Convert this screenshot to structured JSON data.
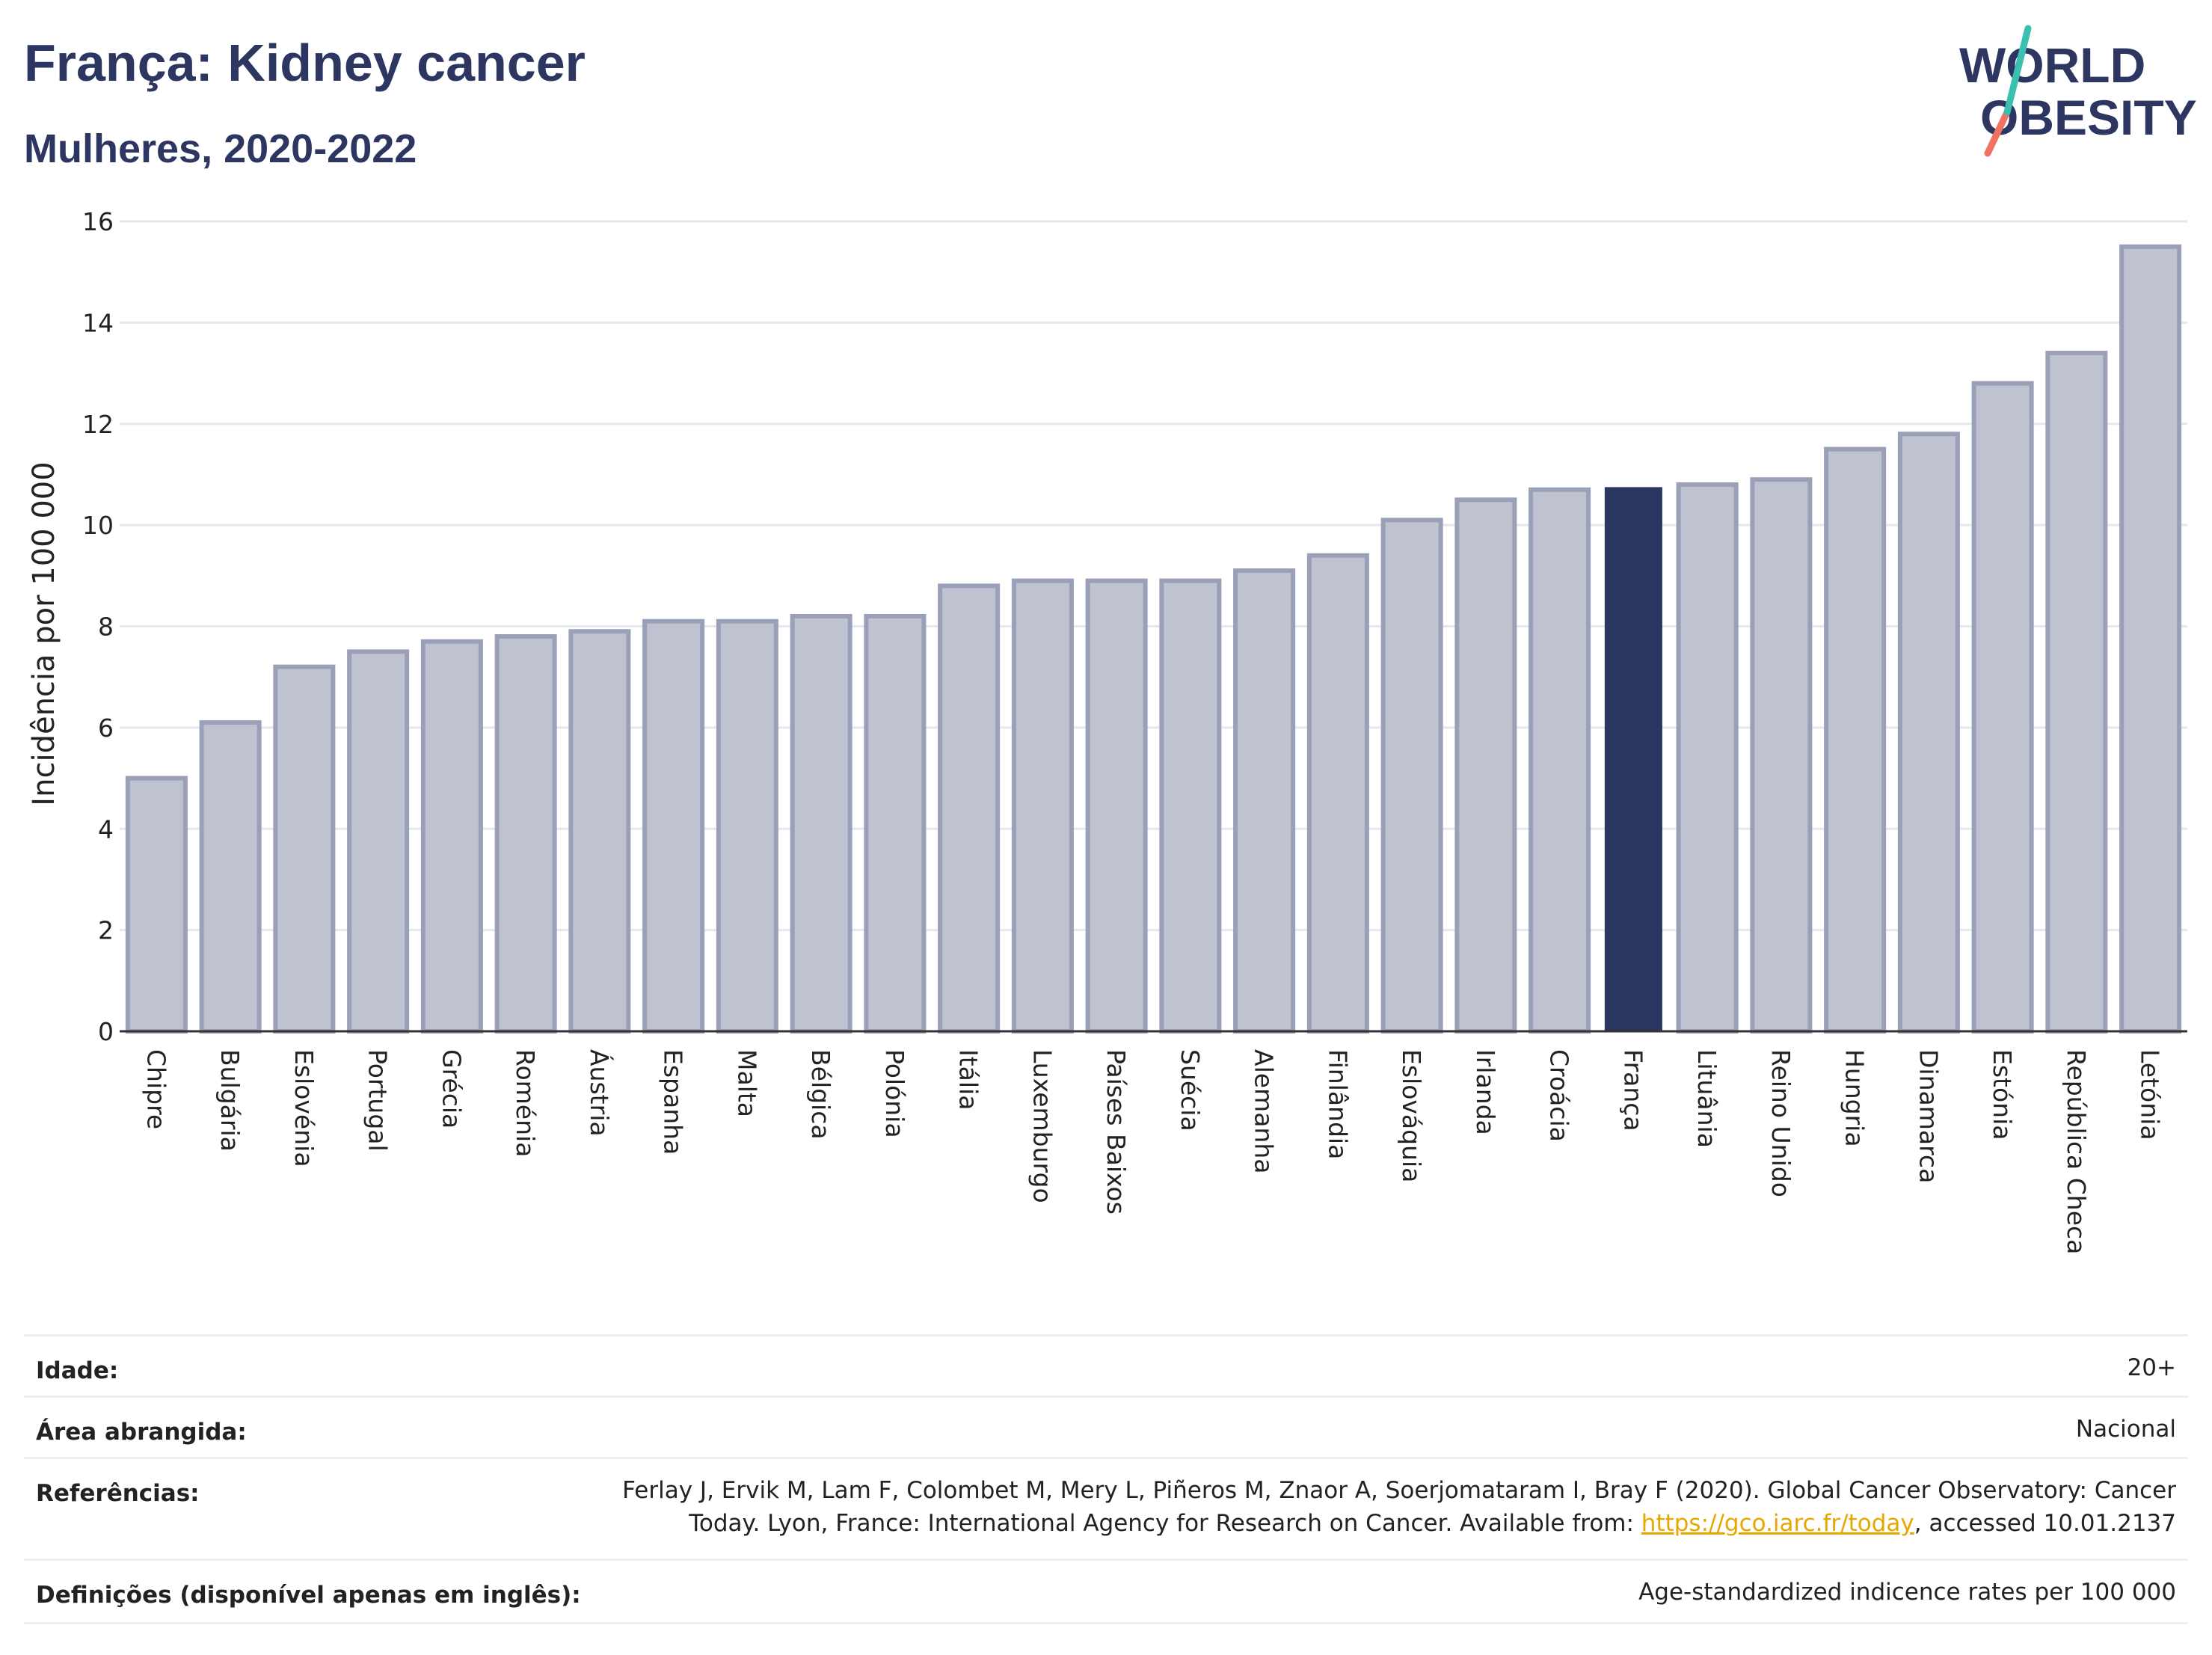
{
  "header": {
    "title": "França: Kidney cancer",
    "subtitle": "Mulheres, 2020-2022"
  },
  "logo": {
    "line1": "WORLD",
    "line2": "OBESITY",
    "colors": {
      "teal": "#3bbfb0",
      "coral": "#f07261",
      "navy": "#2d3561"
    }
  },
  "colors": {
    "bar": "#bfc2cf",
    "bar_border": "#9aa0b8",
    "highlight": "#2a3560",
    "grid": "#e6e7ee",
    "axis": "#333333"
  },
  "chart_data": {
    "type": "bar",
    "ylabel": "Incidência por 100 000",
    "ylim": [
      0,
      16
    ],
    "yticks": [
      0,
      2,
      4,
      6,
      8,
      10,
      12,
      14,
      16
    ],
    "grid": true,
    "highlight": "França",
    "categories": [
      "Chipre",
      "Bulgária",
      "Eslovénia",
      "Portugal",
      "Grécia",
      "Roménia",
      "Áustria",
      "Espanha",
      "Malta",
      "Bélgica",
      "Polónia",
      "Itália",
      "Luxemburgo",
      "Países Baixos",
      "Suécia",
      "Alemanha",
      "Finlândia",
      "Eslováquia",
      "Irlanda",
      "Croácia",
      "França",
      "Lituânia",
      "Reino Unido",
      "Hungria",
      "Dinamarca",
      "Estónia",
      "República Checa",
      "Letónia"
    ],
    "values": [
      5.0,
      6.1,
      7.2,
      7.5,
      7.7,
      7.8,
      7.9,
      8.1,
      8.1,
      8.2,
      8.2,
      8.8,
      8.9,
      8.9,
      8.9,
      9.1,
      9.4,
      10.1,
      10.5,
      10.7,
      10.75,
      10.8,
      10.9,
      11.5,
      11.8,
      12.8,
      13.4,
      15.5
    ]
  },
  "info": {
    "age_label": "Idade:",
    "age_value": "20+",
    "area_label": "Área abrangida:",
    "area_value": "Nacional",
    "refs_label": "Referências:",
    "refs_line1": "Ferlay J, Ervik M, Lam F, Colombet M, Mery L, Piñeros M, Znaor A, Soerjomataram I, Bray F (2020). Global Cancer Observatory: Cancer",
    "refs_line2_pre": "Today. Lyon, France: International Agency for Research on Cancer. Available from: ",
    "refs_link": "https://gco.iarc.fr/today",
    "refs_line2_post": ", accessed 10.01.2137",
    "defs_label": "Definições (disponível apenas em inglês):",
    "defs_value": "Age-standardized indicence rates per 100 000"
  }
}
